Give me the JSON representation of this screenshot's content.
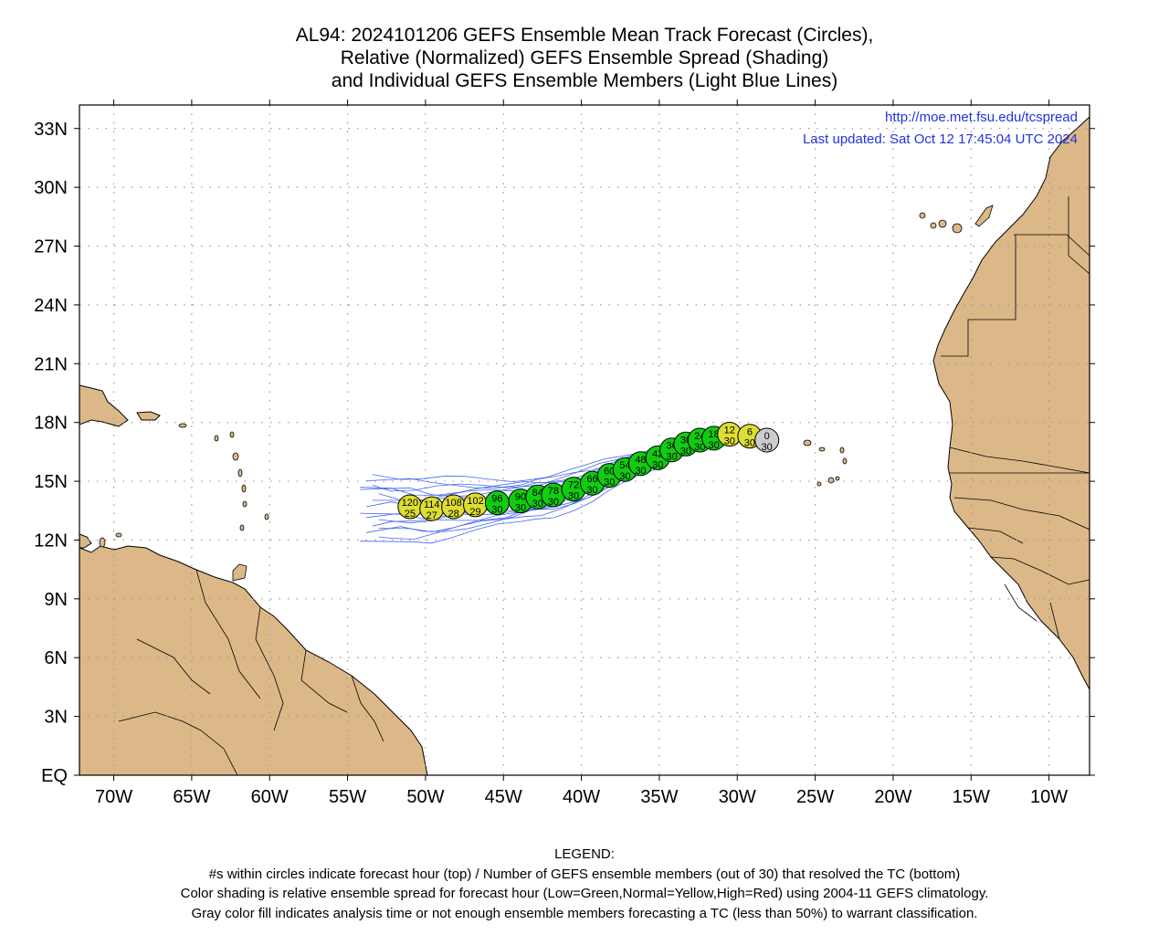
{
  "title": {
    "line1": "AL94: 2024101206 GEFS Ensemble Mean Track Forecast (Circles),",
    "line2": "Relative (Normalized) GEFS Ensemble Spread (Shading)",
    "line3": "and Individual GEFS Ensemble Members (Light Blue Lines)"
  },
  "header_info": {
    "url": "http://moe.met.fsu.edu/tcspread",
    "updated": "Last updated: Sat Oct 12 17:45:04 UTC 2024"
  },
  "axes": {
    "lat_labels": [
      "EQ",
      "3N",
      "6N",
      "9N",
      "12N",
      "15N",
      "18N",
      "21N",
      "24N",
      "27N",
      "30N",
      "33N"
    ],
    "lat_values": [
      0,
      3,
      6,
      9,
      12,
      15,
      18,
      21,
      24,
      27,
      30,
      33
    ],
    "lon_labels": [
      "70W",
      "65W",
      "60W",
      "55W",
      "50W",
      "45W",
      "40W",
      "35W",
      "30W",
      "25W",
      "20W",
      "15W",
      "10W"
    ],
    "lon_values": [
      -70,
      -65,
      -60,
      -55,
      -50,
      -45,
      -40,
      -35,
      -30,
      -25,
      -20,
      -15,
      -10
    ],
    "lon_range": [
      -72.2,
      -7.4
    ],
    "lat_range": [
      0,
      34.2
    ],
    "grid": true
  },
  "colors": {
    "land": "#dcb888",
    "ocean": "#ffffff",
    "member_tracks": "#4466ee",
    "low_spread": "#11cc11",
    "normal_spread": "#dddd33",
    "analysis_gray": "#cccccc",
    "url_text": "#2233dd"
  },
  "track_points": [
    {
      "hour": "0",
      "members": "30",
      "lon": -28.1,
      "lat": 17.1,
      "spread": "gray"
    },
    {
      "hour": "6",
      "members": "30",
      "lon": -29.2,
      "lat": 17.3,
      "spread": "normal"
    },
    {
      "hour": "12",
      "members": "30",
      "lon": -30.5,
      "lat": 17.4,
      "spread": "normal"
    },
    {
      "hour": "18",
      "members": "30",
      "lon": -31.5,
      "lat": 17.2,
      "spread": "low"
    },
    {
      "hour": "24",
      "members": "30",
      "lon": -32.4,
      "lat": 17.1,
      "spread": "low"
    },
    {
      "hour": "30",
      "members": "30",
      "lon": -33.3,
      "lat": 16.9,
      "spread": "low"
    },
    {
      "hour": "36",
      "members": "30",
      "lon": -34.2,
      "lat": 16.6,
      "spread": "low"
    },
    {
      "hour": "42",
      "members": "30",
      "lon": -35.1,
      "lat": 16.2,
      "spread": "low"
    },
    {
      "hour": "48",
      "members": "30",
      "lon": -36.2,
      "lat": 15.9,
      "spread": "low"
    },
    {
      "hour": "54",
      "members": "30",
      "lon": -37.2,
      "lat": 15.6,
      "spread": "low"
    },
    {
      "hour": "60",
      "members": "30",
      "lon": -38.2,
      "lat": 15.3,
      "spread": "low"
    },
    {
      "hour": "66",
      "members": "30",
      "lon": -39.3,
      "lat": 14.9,
      "spread": "low"
    },
    {
      "hour": "72",
      "members": "30",
      "lon": -40.5,
      "lat": 14.6,
      "spread": "low"
    },
    {
      "hour": "78",
      "members": "30",
      "lon": -41.8,
      "lat": 14.3,
      "spread": "low"
    },
    {
      "hour": "84",
      "members": "30",
      "lon": -42.8,
      "lat": 14.2,
      "spread": "low"
    },
    {
      "hour": "90",
      "members": "30",
      "lon": -43.9,
      "lat": 14.0,
      "spread": "low"
    },
    {
      "hour": "96",
      "members": "30",
      "lon": -45.4,
      "lat": 13.9,
      "spread": "low"
    },
    {
      "hour": "102",
      "members": "29",
      "lon": -46.8,
      "lat": 13.8,
      "spread": "normal"
    },
    {
      "hour": "108",
      "members": "28",
      "lon": -48.2,
      "lat": 13.7,
      "spread": "normal"
    },
    {
      "hour": "114",
      "members": "27",
      "lon": -49.6,
      "lat": 13.6,
      "spread": "normal"
    },
    {
      "hour": "120",
      "members": "25",
      "lon": -51.0,
      "lat": 13.7,
      "spread": "normal"
    }
  ],
  "legend": {
    "heading": "LEGEND:",
    "line1": "#s within circles indicate forecast hour (top) / Number of GEFS ensemble members (out of 30) that resolved the TC (bottom)",
    "line2": "Color shading is relative ensemble spread for forecast hour (Low=Green,Normal=Yellow,High=Red) using 2004-11 GEFS climatology.",
    "line3": "Gray color fill indicates analysis time or not enough ensemble members forecasting a TC (less than 50%) to warrant classification."
  }
}
